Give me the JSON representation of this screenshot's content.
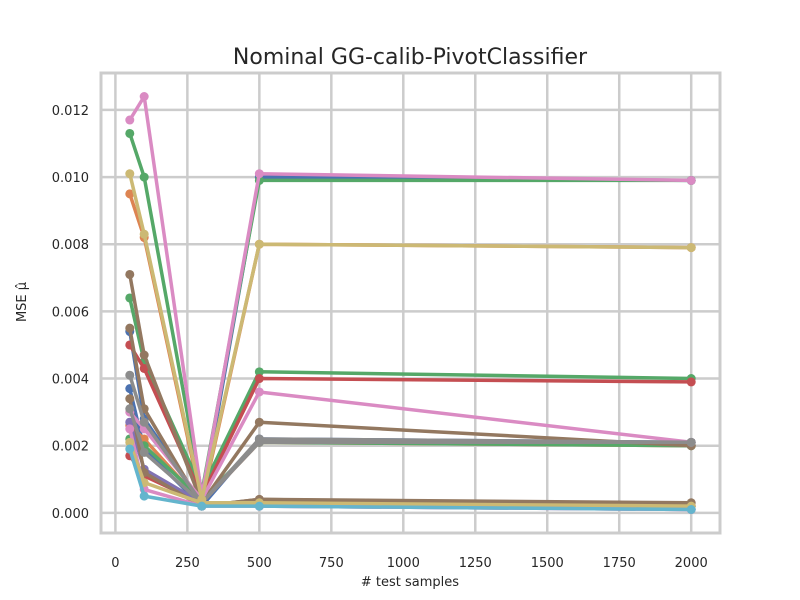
{
  "chart_data": {
    "type": "line",
    "title": "Nominal GG-calib-PivotClassifier",
    "xlabel": "# test samples",
    "ylabel": "MSE μ̂",
    "xlim": [
      -50,
      2100
    ],
    "ylim": [
      -0.0006,
      0.0131
    ],
    "grid": true,
    "x": [
      50,
      100,
      300,
      500,
      2000
    ],
    "xticks": [
      0,
      250,
      500,
      750,
      1000,
      1250,
      1500,
      1750,
      2000
    ],
    "xtick_labels": [
      "0",
      "250",
      "500",
      "750",
      "1000",
      "1250",
      "1500",
      "1750",
      "2000"
    ],
    "yticks": [
      0,
      0.002,
      0.004,
      0.006,
      0.008,
      0.01,
      0.012
    ],
    "ytick_labels": [
      "0.000",
      "0.002",
      "0.004",
      "0.006",
      "0.008",
      "0.010",
      "0.012"
    ],
    "series": [
      {
        "color": "#4c72b0",
        "values": [
          0.0054,
          0.0028,
          0.0003,
          0.01,
          0.0099
        ]
      },
      {
        "color": "#4c72b0",
        "values": [
          0.0037,
          0.0019,
          0.0002,
          0.0022,
          0.0021
        ]
      },
      {
        "color": "#dd8452",
        "values": [
          0.0095,
          0.0082,
          0.0003,
          0.008,
          0.0079
        ]
      },
      {
        "color": "#dd8452",
        "values": [
          0.0026,
          0.0022,
          0.0003,
          0.0021,
          0.002
        ]
      },
      {
        "color": "#55a868",
        "values": [
          0.0113,
          0.01,
          0.0006,
          0.0099,
          0.0099
        ]
      },
      {
        "color": "#55a868",
        "values": [
          0.0064,
          0.0045,
          0.0007,
          0.0042,
          0.004
        ]
      },
      {
        "color": "#55a868",
        "values": [
          0.0022,
          0.002,
          0.0004,
          0.0021,
          0.002
        ]
      },
      {
        "color": "#c44e52",
        "values": [
          0.005,
          0.0043,
          0.0005,
          0.004,
          0.0039
        ]
      },
      {
        "color": "#c44e52",
        "values": [
          0.0017,
          0.0011,
          0.0003,
          0.0003,
          0.0002
        ]
      },
      {
        "color": "#8172b3",
        "values": [
          0.0027,
          0.0013,
          0.0003,
          0.0002,
          0.0001
        ]
      },
      {
        "color": "#937860",
        "values": [
          0.0071,
          0.0047,
          0.0003,
          0.0027,
          0.002
        ]
      },
      {
        "color": "#937860",
        "values": [
          0.0055,
          0.0031,
          0.0002,
          0.0004,
          0.0003
        ]
      },
      {
        "color": "#937860",
        "values": [
          0.0034,
          0.0012,
          0.0002,
          0.0004,
          0.0002
        ]
      },
      {
        "color": "#da8bc3",
        "values": [
          0.0117,
          0.0124,
          0.0005,
          0.0101,
          0.0099
        ]
      },
      {
        "color": "#da8bc3",
        "values": [
          0.003,
          0.0025,
          0.0004,
          0.0036,
          0.0021
        ]
      },
      {
        "color": "#da8bc3",
        "values": [
          0.0025,
          0.0007,
          0.0002,
          0.0002,
          0.0001
        ]
      },
      {
        "color": "#8c8c8c",
        "values": [
          0.0041,
          0.0027,
          0.0003,
          0.0022,
          0.0021
        ]
      },
      {
        "color": "#8c8c8c",
        "values": [
          0.0031,
          0.0018,
          0.0003,
          0.0021,
          0.0021
        ]
      },
      {
        "color": "#ccb974",
        "values": [
          0.0101,
          0.0083,
          0.0004,
          0.008,
          0.0079
        ]
      },
      {
        "color": "#ccb974",
        "values": [
          0.0021,
          0.0009,
          0.0003,
          0.0003,
          0.0002
        ]
      },
      {
        "color": "#64b5cd",
        "values": [
          0.0019,
          0.0005,
          0.0002,
          0.0002,
          0.0001
        ]
      }
    ]
  }
}
